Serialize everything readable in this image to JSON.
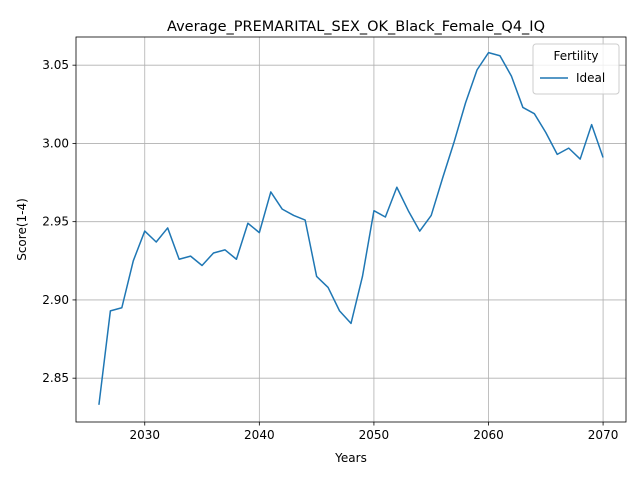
{
  "chart_data": {
    "type": "line",
    "title": "Average_PREMARITAL_SEX_OK_Black_Female_Q4_IQ",
    "xlabel": "Years",
    "ylabel": "Score(1-4)",
    "xlim": [
      2024,
      2072
    ],
    "ylim": [
      2.822,
      3.068
    ],
    "xticks": [
      2030,
      2040,
      2050,
      2060,
      2070
    ],
    "yticks": [
      2.85,
      2.9,
      2.95,
      3.0,
      3.05
    ],
    "xtick_labels": [
      "2030",
      "2040",
      "2050",
      "2060",
      "2070"
    ],
    "ytick_labels": [
      "2.85",
      "2.90",
      "2.95",
      "3.00",
      "3.05"
    ],
    "grid": true,
    "legend": {
      "title": "Fertility",
      "position": "top-right"
    },
    "series": [
      {
        "name": "Ideal",
        "color": "#1f77b4",
        "x": [
          2026,
          2027,
          2028,
          2029,
          2030,
          2031,
          2032,
          2033,
          2034,
          2035,
          2036,
          2037,
          2038,
          2039,
          2040,
          2041,
          2042,
          2043,
          2044,
          2045,
          2046,
          2047,
          2048,
          2049,
          2050,
          2051,
          2052,
          2053,
          2054,
          2055,
          2056,
          2057,
          2058,
          2059,
          2060,
          2061,
          2062,
          2063,
          2064,
          2065,
          2066,
          2067,
          2068,
          2069,
          2070
        ],
        "values": [
          2.833,
          2.893,
          2.895,
          2.925,
          2.944,
          2.937,
          2.946,
          2.926,
          2.928,
          2.922,
          2.93,
          2.932,
          2.926,
          2.949,
          2.943,
          2.969,
          2.958,
          2.954,
          2.951,
          2.915,
          2.908,
          2.893,
          2.885,
          2.915,
          2.957,
          2.953,
          2.972,
          2.957,
          2.944,
          2.954,
          2.978,
          3.001,
          3.026,
          3.047,
          3.058,
          3.056,
          3.043,
          3.023,
          3.019,
          3.007,
          2.993,
          2.997,
          2.99,
          3.012,
          2.991
        ]
      }
    ]
  }
}
